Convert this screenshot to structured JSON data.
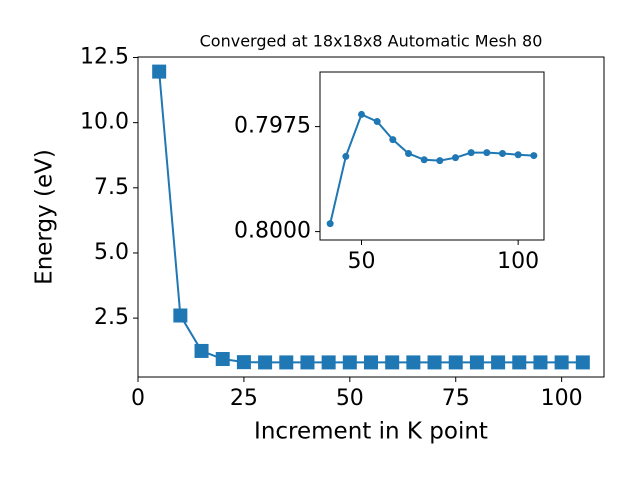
{
  "chart_data": [
    {
      "type": "line",
      "title": "Converged at 18x18x8 Automatic Mesh 80",
      "xlabel": "Increment in K point",
      "ylabel": "Energy (eV)",
      "x": [
        5,
        10,
        15,
        20,
        25,
        30,
        35,
        40,
        45,
        50,
        55,
        60,
        65,
        70,
        75,
        80,
        85,
        90,
        95,
        100,
        105
      ],
      "values": [
        11.96,
        2.6,
        1.24,
        0.93,
        0.81,
        0.8,
        0.8,
        0.8,
        0.8,
        0.8,
        0.8,
        0.8,
        0.8,
        0.8,
        0.8,
        0.8,
        0.8,
        0.8,
        0.8,
        0.8,
        0.8
      ],
      "color": "#1f77b4",
      "marker": "square",
      "xlim": [
        0,
        110
      ],
      "ylim": [
        0.24,
        12.52
      ],
      "xticks": [
        0,
        25,
        50,
        75,
        100
      ],
      "yticks": [
        {
          "value": 2.5,
          "label": "2.5"
        },
        {
          "value": 5,
          "label": "5.0"
        },
        {
          "value": 7.5,
          "label": "7.5"
        },
        {
          "value": 10,
          "label": "10.0"
        },
        {
          "value": 12.5,
          "label": "12.5"
        }
      ]
    },
    {
      "type": "line",
      "x": [
        40,
        45,
        50,
        55,
        60,
        65,
        70,
        75,
        80,
        85,
        90,
        95,
        100,
        105
      ],
      "values": [
        0.79981,
        0.79821,
        0.79721,
        0.79738,
        0.79781,
        0.79814,
        0.79829,
        0.79831,
        0.79824,
        0.79812,
        0.79812,
        0.79814,
        0.79817,
        0.79819
      ],
      "color": "#1f77b4",
      "marker": "circle",
      "xlim": [
        36.75,
        108.25
      ],
      "ylim": [
        0.8002,
        0.7962
      ],
      "y_inverted": true,
      "xticks": [
        50,
        100
      ],
      "yticks": [
        {
          "value": 0.7975,
          "label": "0.7975"
        },
        {
          "value": 0.8,
          "label": "0.8000"
        }
      ]
    }
  ]
}
